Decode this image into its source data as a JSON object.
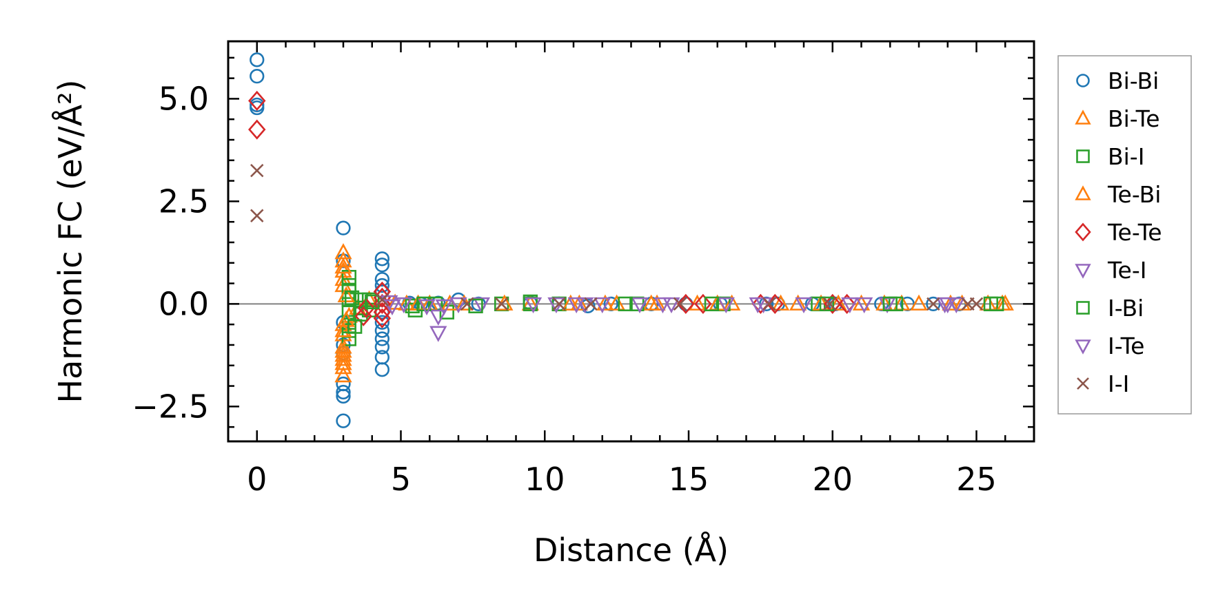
{
  "chart_data": {
    "type": "scatter",
    "xlabel": "Distance (Å)",
    "ylabel": "Harmonic FC (eV/Å²)",
    "xlim": [
      -1,
      27
    ],
    "ylim": [
      -3.35,
      6.4
    ],
    "xticks": [
      0,
      5,
      10,
      15,
      20,
      25
    ],
    "xtick_labels": [
      "0",
      "5",
      "10",
      "15",
      "20",
      "25"
    ],
    "yticks": [
      -2.5,
      0.0,
      2.5,
      5.0
    ],
    "ytick_labels": [
      "−2.5",
      "0.0",
      "2.5",
      "5.0"
    ],
    "legend_position": "outside-right",
    "zero_line": true,
    "series": [
      {
        "name": "Bi-Bi",
        "marker": "circle",
        "color": "#1f77b4",
        "x": [
          0,
          0,
          0,
          0,
          3,
          3,
          3,
          3,
          3,
          3,
          3,
          3,
          3,
          4.35,
          4.35,
          4.35,
          4.35,
          4.35,
          4.35,
          4.35,
          4.35,
          4.35,
          4.35,
          4.35,
          4.35,
          5.3,
          5.7,
          6.3,
          7,
          7.7,
          9.5,
          10.5,
          11.5,
          12.3,
          13.7,
          14.9,
          16.1,
          17.7,
          18.1,
          19.3,
          20.1,
          21.7,
          22.6,
          23.5,
          24.4
        ],
        "y": [
          5.95,
          5.55,
          4.85,
          4.78,
          1.85,
          1.05,
          -0.45,
          -1.0,
          -1.95,
          -2.15,
          -2.25,
          -2.85,
          -1.2,
          1.1,
          0.95,
          0.6,
          0.45,
          0.3,
          -0.2,
          -0.45,
          -0.65,
          -0.85,
          -1.05,
          -1.3,
          -1.6,
          0.02,
          0.0,
          0.02,
          0.1,
          0.0,
          0.02,
          0.0,
          -0.05,
          0.0,
          0.0,
          0.0,
          0.0,
          0.0,
          0.0,
          0.0,
          0.0,
          0.0,
          0.0,
          0.0,
          0.0
        ]
      },
      {
        "name": "Bi-Te",
        "marker": "triangle-up",
        "color": "#ff7f0e",
        "x": [
          3,
          3,
          3,
          3,
          3,
          3,
          3,
          3,
          3,
          3,
          3,
          3,
          3,
          3.2,
          3.5,
          3.9,
          5.2,
          6.0,
          7.2,
          9.5,
          11.2,
          12.5,
          13.7,
          15.3,
          16.5,
          18.8,
          20.2,
          21.8,
          22.4,
          24.1,
          25.4,
          25.9
        ],
        "y": [
          1.25,
          1.05,
          0.8,
          0.6,
          0.45,
          -0.5,
          -0.75,
          -1.05,
          -1.25,
          -1.45,
          -1.55,
          -1.75,
          -1.35,
          -0.3,
          -0.1,
          0.1,
          0.0,
          0.0,
          0.0,
          0.0,
          0.0,
          0.0,
          0.0,
          0.0,
          0.0,
          0.0,
          0.0,
          0.0,
          0.0,
          0.0,
          0.0,
          0.0
        ]
      },
      {
        "name": "Bi-I",
        "marker": "square",
        "color": "#2ca02c",
        "x": [
          3.2,
          3.2,
          3.2,
          3.2,
          3.2,
          3.2,
          3.2,
          3.2,
          3.6,
          3.6,
          3.6,
          3.9,
          3.9,
          5.4,
          5.5,
          6.2,
          6.6,
          8.5,
          9.5,
          10.5,
          13.2,
          16.2,
          19.5,
          22.2,
          25.5
        ],
        "y": [
          0.65,
          0.45,
          0.3,
          0.1,
          -0.2,
          -0.45,
          -0.65,
          -0.85,
          0.1,
          -0.1,
          -0.25,
          0.1,
          -0.15,
          -0.05,
          -0.15,
          0.0,
          -0.2,
          0.0,
          0.0,
          0.0,
          0.0,
          0.0,
          0.0,
          0.0,
          0.0
        ]
      },
      {
        "name": "Te-Bi",
        "marker": "triangle-up",
        "color": "#ff7f0e",
        "x": [
          3,
          3,
          3,
          3.1,
          3.1,
          4.8,
          5.6,
          6.7,
          8.6,
          10.9,
          12.1,
          13.9,
          16.0,
          18.2,
          19.6,
          21.0,
          23.0,
          24.5,
          26.0
        ],
        "y": [
          0.9,
          -0.65,
          -1.15,
          0.2,
          -0.4,
          0.02,
          0.0,
          0.0,
          0.0,
          0.0,
          0.0,
          0.0,
          0.0,
          0.0,
          0.0,
          0.0,
          0.0,
          0.0,
          0.0
        ]
      },
      {
        "name": "Te-Te",
        "marker": "diamond",
        "color": "#d62728",
        "x": [
          0,
          0,
          3.7,
          3.8,
          4.35,
          4.35,
          4.35,
          4.35,
          4.35,
          14.9,
          15.5,
          17.5,
          18.0,
          20.0,
          20.5
        ],
        "y": [
          4.95,
          4.25,
          -0.3,
          -0.1,
          0.3,
          0.15,
          0.0,
          -0.2,
          -0.35,
          0.0,
          0.0,
          0.0,
          0.0,
          0.0,
          0.0
        ]
      },
      {
        "name": "Te-I",
        "marker": "triangle-down",
        "color": "#9467bd",
        "x": [
          4.6,
          5.1,
          6.3,
          6.3,
          6.5,
          7.8,
          10.4,
          11.1,
          12.0,
          13.3,
          14.4,
          16.3,
          17.6,
          19.0,
          21.1,
          21.9,
          23.9,
          24.3
        ],
        "y": [
          0.05,
          0.0,
          -0.3,
          -0.7,
          -0.05,
          0.0,
          0.0,
          0.0,
          0.0,
          0.0,
          0.0,
          0.0,
          0.0,
          0.0,
          0.0,
          0.0,
          0.0,
          0.0
        ]
      },
      {
        "name": "I-Bi",
        "marker": "square",
        "color": "#2ca02c",
        "x": [
          3.3,
          3.4,
          4.0,
          5.8,
          7.6,
          9.5,
          12.8,
          15.8,
          19.8,
          22.0,
          25.7
        ],
        "y": [
          0.15,
          -0.55,
          0.05,
          0.0,
          -0.05,
          0.05,
          0.0,
          0.0,
          0.0,
          0.0,
          0.0
        ]
      },
      {
        "name": "I-Te",
        "marker": "triangle-down",
        "color": "#9467bd",
        "x": [
          4.7,
          5.9,
          7.0,
          9.6,
          11.4,
          14.1,
          17.4,
          20.6,
          24.0
        ],
        "y": [
          -0.05,
          -0.05,
          0.0,
          0.0,
          0.0,
          0.0,
          0.0,
          0.0,
          0.0
        ]
      },
      {
        "name": "I-I",
        "marker": "x",
        "color": "#8c564b",
        "x": [
          0,
          0,
          4.35,
          7.3,
          8.5,
          10.5,
          11.6,
          14.7,
          17.8,
          19.9,
          23.5,
          24.7,
          25.0
        ],
        "y": [
          3.25,
          2.15,
          0.1,
          0.0,
          0.0,
          0.0,
          0.0,
          0.0,
          0.0,
          0.0,
          0.0,
          0.0,
          0.0
        ]
      }
    ]
  }
}
